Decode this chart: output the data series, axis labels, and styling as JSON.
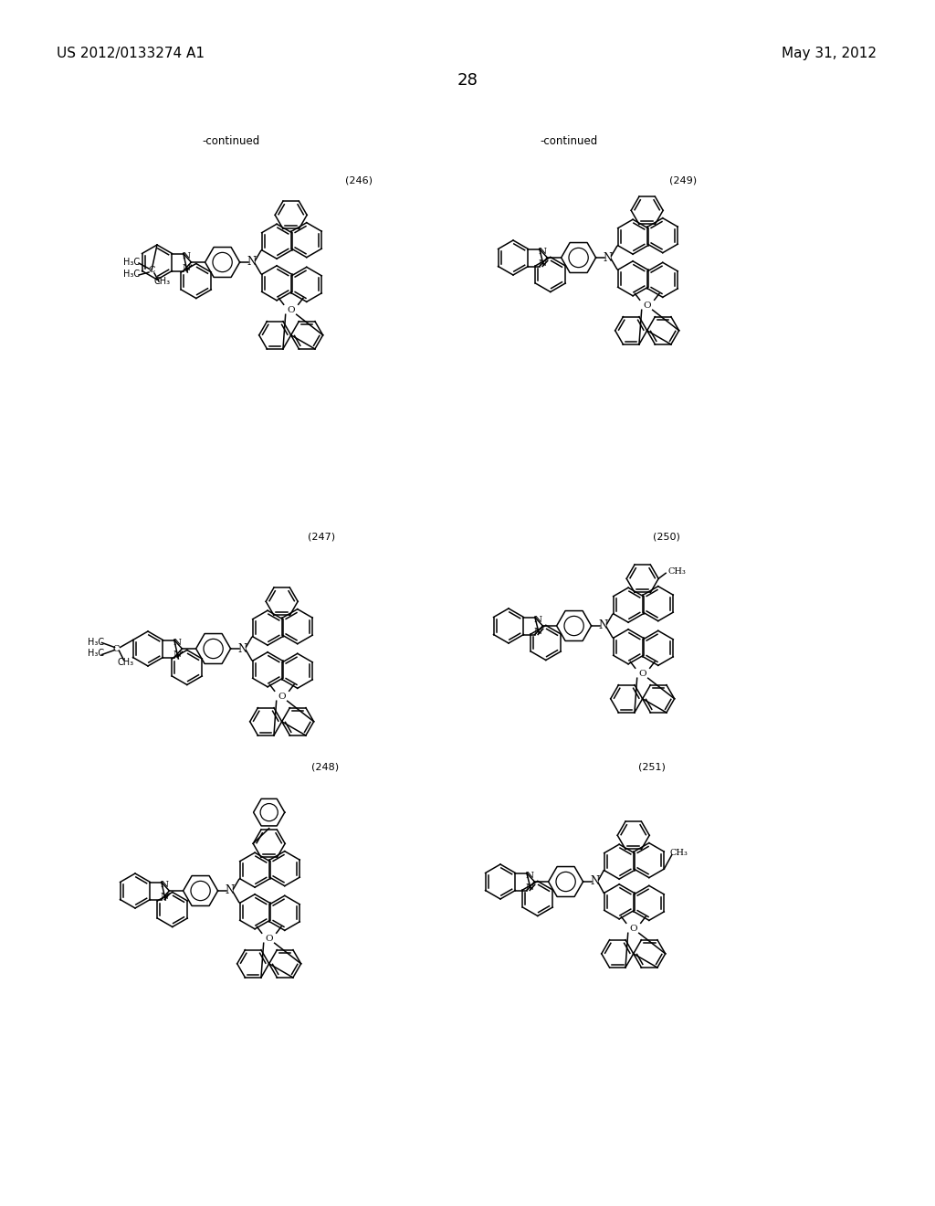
{
  "bg": "#ffffff",
  "header_left": "US 2012/0133274 A1",
  "header_right": "May 31, 2012",
  "page_num": "28",
  "continued": "-continued",
  "labels": [
    "(246)",
    "(249)",
    "(247)",
    "(250)",
    "(248)",
    "(251)"
  ]
}
